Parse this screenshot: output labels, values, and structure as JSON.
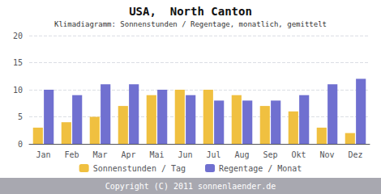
{
  "chart_data": {
    "type": "bar",
    "title": "USA,  North Canton",
    "subtitle": "Klimadiagramm: Sonnenstunden / Regentage, monatlich, gemittelt",
    "categories": [
      "Jan",
      "Feb",
      "Mar",
      "Apr",
      "Mai",
      "Jun",
      "Jul",
      "Aug",
      "Sep",
      "Okt",
      "Nov",
      "Dez"
    ],
    "series": [
      {
        "name": "Sonnenstunden / Tag",
        "color": "#f0c040",
        "values": [
          3,
          4,
          5,
          7,
          9,
          10,
          10,
          9,
          7,
          6,
          3,
          2
        ]
      },
      {
        "name": "Regentage / Monat",
        "color": "#7070d0",
        "values": [
          10,
          9,
          11,
          11,
          10,
          9,
          8,
          8,
          8,
          9,
          11,
          12
        ]
      }
    ],
    "ylim": [
      0,
      20
    ],
    "yticks": [
      0,
      5,
      10,
      15,
      20
    ],
    "grid": true,
    "legend": "bottom",
    "annotations": [
      "Copyright (C) 2011 sonnenlaender.de"
    ]
  }
}
